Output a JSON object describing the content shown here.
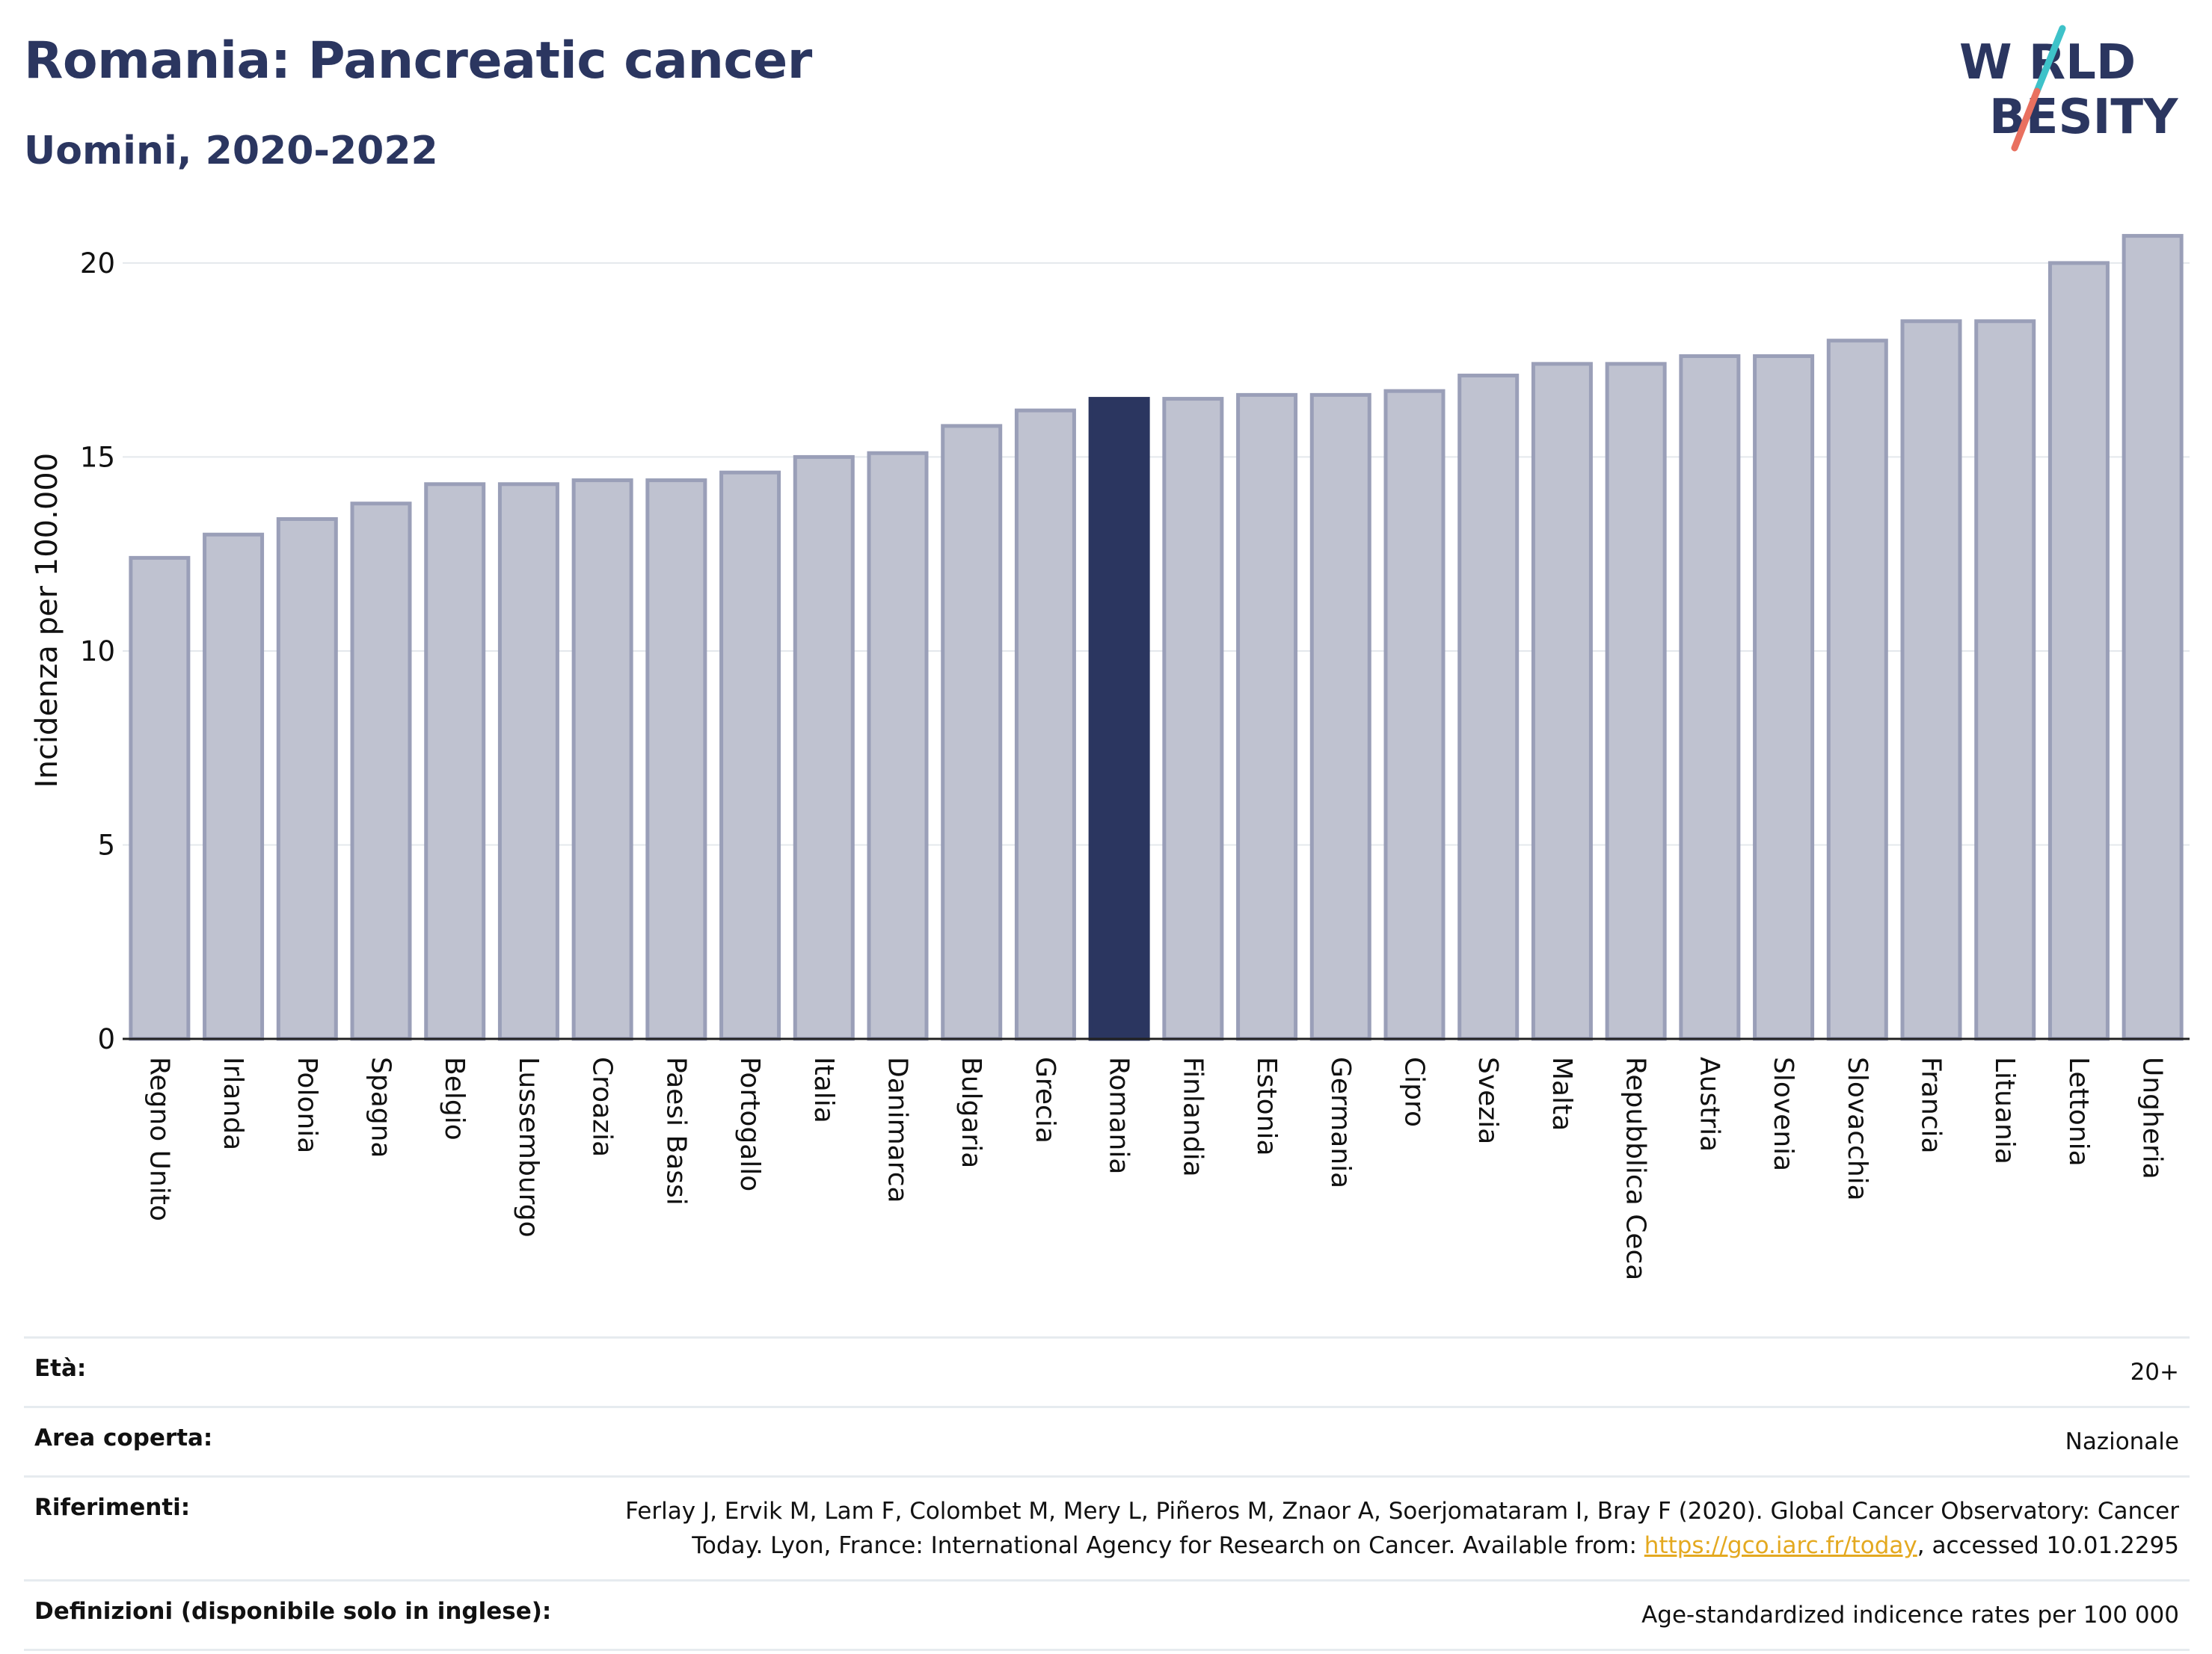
{
  "header": {
    "title": "Romania: Pancreatic cancer",
    "subtitle": "Uomini, 2020-2022"
  },
  "logo": {
    "line1": "W RLD",
    "line2": "BESITY",
    "text": "WORLD OBESITY",
    "colors": {
      "text": "#2b3660",
      "slash_top": "#3ec2c9",
      "slash_bottom": "#e9705f"
    }
  },
  "chart_data": {
    "type": "bar",
    "title": "",
    "xlabel": "",
    "ylabel": "Incidenza per 100.000",
    "ylim": [
      0,
      21
    ],
    "yticks": [
      0,
      5,
      10,
      15,
      20
    ],
    "grid": true,
    "highlight": "Romania",
    "colors": {
      "bar": "#bfc2d0",
      "bar_border": "#9a9fb8",
      "highlight": "#2b3660",
      "grid": "#e4e8ec"
    },
    "categories": [
      "Regno Unito",
      "Irlanda",
      "Polonia",
      "Spagna",
      "Belgio",
      "Lussemburgo",
      "Croazia",
      "Paesi Bassi",
      "Portogallo",
      "Italia",
      "Danimarca",
      "Bulgaria",
      "Grecia",
      "Romania",
      "Finlandia",
      "Estonia",
      "Germania",
      "Cipro",
      "Svezia",
      "Malta",
      "Repubblica Ceca",
      "Austria",
      "Slovenia",
      "Slovacchia",
      "Francia",
      "Lituania",
      "Lettonia",
      "Ungheria"
    ],
    "values": [
      12.4,
      13.0,
      13.4,
      13.8,
      14.3,
      14.3,
      14.4,
      14.4,
      14.6,
      15.0,
      15.1,
      15.8,
      16.2,
      16.5,
      16.5,
      16.6,
      16.6,
      16.7,
      17.1,
      17.4,
      17.4,
      17.6,
      17.6,
      18.0,
      18.5,
      18.5,
      20.0,
      20.7
    ]
  },
  "meta": {
    "age": {
      "label": "Età:",
      "value": "20+"
    },
    "area": {
      "label": "Area coperta:",
      "value": "Nazionale"
    },
    "references": {
      "label": "Riferimenti:",
      "text_before": "Ferlay J, Ervik M, Lam F, Colombet M, Mery L, Piñeros M, Znaor A, Soerjomataram I, Bray F (2020). Global Cancer Observatory: Cancer Today. Lyon, France: International Agency for Research on Cancer. Available from: ",
      "link": "https://gco.iarc.fr/today",
      "text_after": ", accessed 10.01.2295"
    },
    "definitions": {
      "label": "Definizioni (disponibile solo in inglese):",
      "value": "Age-standardized indicence rates per 100 000"
    }
  }
}
